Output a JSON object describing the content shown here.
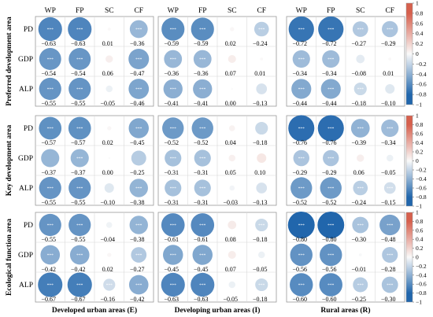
{
  "chart_data": {
    "type": "correlation-matrix",
    "columns": [
      "WP",
      "FP",
      "SC",
      "CF"
    ],
    "rows": [
      "PD",
      "GDP",
      "ALP"
    ],
    "column_groups": [
      "Developed urban areas (E)",
      "Developing urban areas (I)",
      "Rural areas (R)"
    ],
    "row_groups": [
      "Preferred development area",
      "Key development area",
      "Ecological function area"
    ],
    "significance_marker": "***",
    "colorbar": {
      "ticks": [
        "1",
        "0.8",
        "0.6",
        "0.4",
        "0.2",
        "0",
        "-0.2",
        "-0.4",
        "-0.6",
        "-0.8",
        "-1"
      ],
      "range": [
        -1,
        1
      ],
      "negative_color": "#2166ac",
      "positive_color": "#d6604d"
    },
    "panels": [
      {
        "row_group": "Preferred development area",
        "col_group": "Developed urban areas (E)",
        "values": [
          [
            -0.63,
            -0.63,
            0.01,
            -0.36
          ],
          [
            -0.54,
            -0.54,
            0.06,
            -0.47
          ],
          [
            -0.55,
            -0.55,
            -0.05,
            -0.46
          ]
        ],
        "labels": [
          [
            "−0.63",
            "−0.63",
            "0.01",
            "−0.36"
          ],
          [
            "−0.54",
            "−0.54",
            "0.06",
            "−0.47"
          ],
          [
            "−0.55",
            "−0.55",
            "−0.05",
            "−0.46"
          ]
        ],
        "sig": [
          [
            1,
            1,
            0,
            1
          ],
          [
            1,
            1,
            0,
            1
          ],
          [
            1,
            1,
            0,
            1
          ]
        ]
      },
      {
        "row_group": "Preferred development area",
        "col_group": "Developing urban areas (I)",
        "values": [
          [
            -0.59,
            -0.59,
            0.02,
            -0.24
          ],
          [
            -0.36,
            -0.36,
            0.07,
            0.01
          ],
          [
            -0.41,
            -0.41,
            0.0,
            -0.13
          ]
        ],
        "labels": [
          [
            "−0.59",
            "−0.59",
            "0.02",
            "−0.24"
          ],
          [
            "−0.36",
            "−0.36",
            "0.07",
            "0.01"
          ],
          [
            "−0.41",
            "−0.41",
            "0.00",
            "−0.13"
          ]
        ],
        "sig": [
          [
            1,
            1,
            0,
            1
          ],
          [
            1,
            1,
            0,
            0
          ],
          [
            1,
            1,
            0,
            0
          ]
        ]
      },
      {
        "row_group": "Preferred development area",
        "col_group": "Rural areas (R)",
        "values": [
          [
            -0.72,
            -0.72,
            -0.27,
            -0.29
          ],
          [
            -0.34,
            -0.34,
            -0.08,
            0.01
          ],
          [
            -0.44,
            -0.44,
            -0.18,
            -0.1
          ]
        ],
        "labels": [
          [
            "−0.72",
            "−0.72",
            "−0.27",
            "−0.29"
          ],
          [
            "−0.34",
            "−0.34",
            "−0.08",
            "0.01"
          ],
          [
            "−0.44",
            "−0.44",
            "−0.18",
            "−0.10"
          ]
        ],
        "sig": [
          [
            1,
            1,
            1,
            1
          ],
          [
            1,
            1,
            0,
            0
          ],
          [
            1,
            1,
            1,
            0
          ]
        ]
      },
      {
        "row_group": "Key development area",
        "col_group": "Developed urban areas (E)",
        "values": [
          [
            -0.57,
            -0.57,
            0.02,
            -0.45
          ],
          [
            -0.37,
            -0.37,
            0.0,
            -0.25
          ],
          [
            -0.55,
            -0.55,
            -0.1,
            -0.38
          ]
        ],
        "labels": [
          [
            "−0.57",
            "−0.57",
            "0.02",
            "−0.45"
          ],
          [
            "−0.37",
            "−0.37",
            "0.00",
            "−0.25"
          ],
          [
            "−0.55",
            "−0.55",
            "−0.10",
            "−0.38"
          ]
        ],
        "sig": [
          [
            1,
            1,
            0,
            1
          ],
          [
            0,
            1,
            0,
            0
          ],
          [
            1,
            1,
            0,
            1
          ]
        ]
      },
      {
        "row_group": "Key development area",
        "col_group": "Developing urban areas (I)",
        "values": [
          [
            -0.52,
            -0.52,
            0.04,
            -0.18
          ],
          [
            -0.31,
            -0.31,
            0.05,
            0.1
          ],
          [
            -0.31,
            -0.31,
            -0.03,
            -0.13
          ]
        ],
        "labels": [
          [
            "−0.52",
            "−0.52",
            "0.04",
            "−0.18"
          ],
          [
            "−0.31",
            "−0.31",
            "0.05",
            "0.10"
          ],
          [
            "−0.31",
            "−0.31",
            "−0.03",
            "−0.13"
          ]
        ],
        "sig": [
          [
            1,
            1,
            0,
            0
          ],
          [
            1,
            1,
            0,
            0
          ],
          [
            1,
            1,
            0,
            0
          ]
        ]
      },
      {
        "row_group": "Key development area",
        "col_group": "Rural areas (R)",
        "values": [
          [
            -0.76,
            -0.76,
            -0.39,
            -0.34
          ],
          [
            -0.29,
            -0.29,
            0.06,
            -0.05
          ],
          [
            -0.52,
            -0.52,
            -0.24,
            -0.15
          ]
        ],
        "labels": [
          [
            "−0.76",
            "−0.76",
            "−0.39",
            "−0.34"
          ],
          [
            "−0.29",
            "−0.29",
            "0.06",
            "−0.05"
          ],
          [
            "−0.52",
            "−0.52",
            "−0.24",
            "−0.15"
          ]
        ],
        "sig": [
          [
            1,
            1,
            1,
            1
          ],
          [
            1,
            1,
            0,
            0
          ],
          [
            1,
            1,
            1,
            1
          ]
        ]
      },
      {
        "row_group": "Ecological function area",
        "col_group": "Developed urban areas (E)",
        "values": [
          [
            -0.55,
            -0.55,
            -0.04,
            -0.38
          ],
          [
            -0.42,
            -0.42,
            0.02,
            -0.27
          ],
          [
            -0.67,
            -0.67,
            -0.16,
            -0.42
          ]
        ],
        "labels": [
          [
            "−0.55",
            "−0.55",
            "−0.04",
            "−0.38"
          ],
          [
            "−0.42",
            "−0.42",
            "0.02",
            "−0.27"
          ],
          [
            "−0.67",
            "−0.67",
            "−0.16",
            "−0.42"
          ]
        ],
        "sig": [
          [
            1,
            1,
            0,
            1
          ],
          [
            1,
            1,
            0,
            1
          ],
          [
            1,
            1,
            1,
            1
          ]
        ]
      },
      {
        "row_group": "Ecological function area",
        "col_group": "Developing urban areas (I)",
        "values": [
          [
            -0.61,
            -0.61,
            0.08,
            -0.18
          ],
          [
            -0.45,
            -0.45,
            0.07,
            -0.05
          ],
          [
            -0.63,
            -0.63,
            -0.05,
            -0.18
          ]
        ],
        "labels": [
          [
            "−0.61",
            "−0.61",
            "0.08",
            "−0.18"
          ],
          [
            "−0.45",
            "−0.45",
            "0.07",
            "−0.05"
          ],
          [
            "−0.63",
            "−0.63",
            "−0.05",
            "−0.18"
          ]
        ],
        "sig": [
          [
            1,
            1,
            0,
            1
          ],
          [
            1,
            1,
            0,
            0
          ],
          [
            1,
            1,
            0,
            1
          ]
        ]
      },
      {
        "row_group": "Ecological function area",
        "col_group": "Rural areas (R)",
        "values": [
          [
            -0.8,
            -0.8,
            -0.3,
            -0.48
          ],
          [
            -0.56,
            -0.56,
            -0.01,
            -0.28
          ],
          [
            -0.6,
            -0.6,
            -0.25,
            -0.3
          ]
        ],
        "labels": [
          [
            "−0.80",
            "−0.80",
            "−0.30",
            "−0.48"
          ],
          [
            "−0.56",
            "−0.56",
            "−0.01",
            "−0.28"
          ],
          [
            "−0.60",
            "−0.60",
            "−0.25",
            "−0.30"
          ]
        ],
        "sig": [
          [
            1,
            1,
            1,
            1
          ],
          [
            1,
            1,
            0,
            1
          ],
          [
            1,
            1,
            1,
            1
          ]
        ]
      }
    ]
  }
}
